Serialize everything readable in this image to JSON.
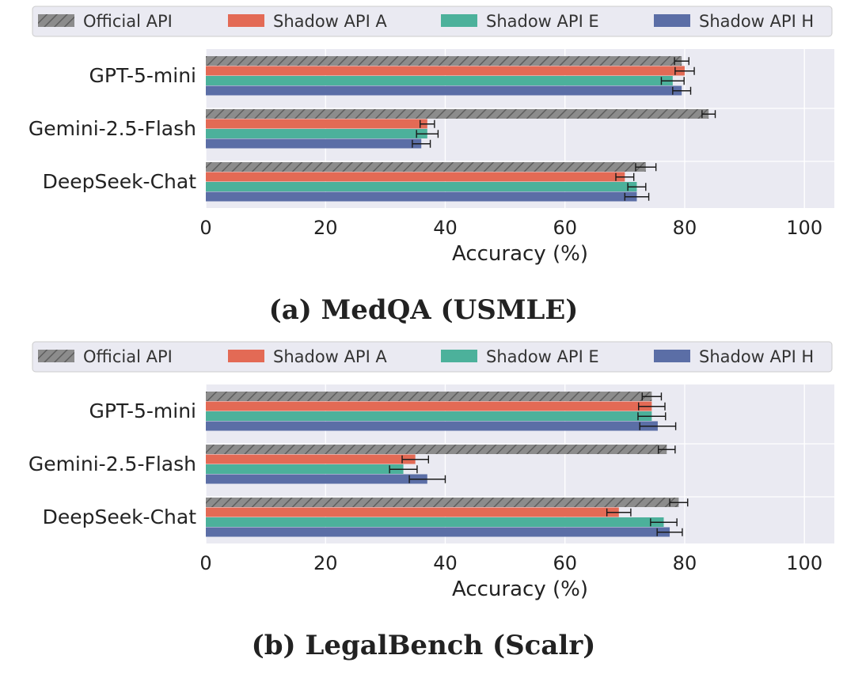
{
  "chart_data": [
    {
      "type": "bar",
      "orientation": "horizontal",
      "caption": "(a) MedQA (USMLE)",
      "xlabel": "Accuracy (%)",
      "ylabel": "",
      "xlim": [
        0,
        105
      ],
      "xticks": [
        0,
        20,
        40,
        60,
        80,
        100
      ],
      "grid": true,
      "legend": "top",
      "categories": [
        "GPT-5-mini",
        "Gemini-2.5-Flash",
        "DeepSeek-Chat"
      ],
      "series": [
        {
          "name": "Official API",
          "color": "#8c8c8c",
          "hatched": true,
          "values": [
            79.5,
            84.0,
            73.5
          ],
          "errors": [
            1.2,
            1.1,
            1.7
          ]
        },
        {
          "name": "Shadow API A",
          "color": "#e36a55",
          "hatched": false,
          "values": [
            80.0,
            37.0,
            70.0
          ],
          "errors": [
            1.6,
            1.2,
            1.5
          ]
        },
        {
          "name": "Shadow API E",
          "color": "#4cb19b",
          "hatched": false,
          "values": [
            78.0,
            37.0,
            72.0
          ],
          "errors": [
            1.9,
            1.8,
            1.5
          ]
        },
        {
          "name": "Shadow API H",
          "color": "#5b6ea6",
          "hatched": false,
          "values": [
            79.5,
            36.0,
            72.0
          ],
          "errors": [
            1.5,
            1.5,
            2.0
          ]
        }
      ]
    },
    {
      "type": "bar",
      "orientation": "horizontal",
      "caption": "(b) LegalBench (Scalr)",
      "xlabel": "Accuracy (%)",
      "ylabel": "",
      "xlim": [
        0,
        105
      ],
      "xticks": [
        0,
        20,
        40,
        60,
        80,
        100
      ],
      "grid": true,
      "legend": "top",
      "categories": [
        "GPT-5-mini",
        "Gemini-2.5-Flash",
        "DeepSeek-Chat"
      ],
      "series": [
        {
          "name": "Official API",
          "color": "#8c8c8c",
          "hatched": true,
          "values": [
            74.5,
            77.0,
            79.0
          ],
          "errors": [
            1.6,
            1.4,
            1.5
          ]
        },
        {
          "name": "Shadow API A",
          "color": "#e36a55",
          "hatched": false,
          "values": [
            74.5,
            35.0,
            69.0
          ],
          "errors": [
            2.2,
            2.2,
            2.0
          ]
        },
        {
          "name": "Shadow API E",
          "color": "#4cb19b",
          "hatched": false,
          "values": [
            74.5,
            33.0,
            76.5
          ],
          "errors": [
            2.3,
            2.3,
            2.2
          ]
        },
        {
          "name": "Shadow API H",
          "color": "#5b6ea6",
          "hatched": false,
          "values": [
            75.5,
            37.0,
            77.5
          ],
          "errors": [
            3.0,
            3.0,
            2.1
          ]
        }
      ]
    }
  ]
}
